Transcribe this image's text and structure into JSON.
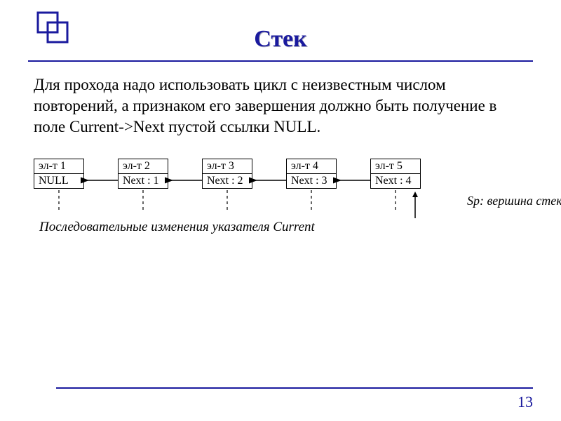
{
  "title": "Стек",
  "body_text": "Для прохода надо использовать цикл с неизвестным числом повторений, а признаком его завершения должно быть получение в поле  Current->Next пустой ссылки NULL.",
  "nodes": [
    {
      "top": "эл-т 1",
      "bottom": "NULL"
    },
    {
      "top": "эл-т 2",
      "bottom": "Next : 1"
    },
    {
      "top": "эл-т 3",
      "bottom": "Next : 2"
    },
    {
      "top": "эл-т 4",
      "bottom": "Next : 3"
    },
    {
      "top": "эл-т 5",
      "bottom": "Next : 4"
    }
  ],
  "sp_label": "Sp:  вершина стека",
  "caption": "Последовательные изменения указателя  Current",
  "page_number": "13",
  "colors": {
    "accent": "#1a1a9e",
    "text": "#000000",
    "bg": "#ffffff"
  },
  "diagram": {
    "node_gap": 48,
    "node_width_approx": 72,
    "arrow_color": "#000000",
    "dash_pattern": "4,4"
  }
}
